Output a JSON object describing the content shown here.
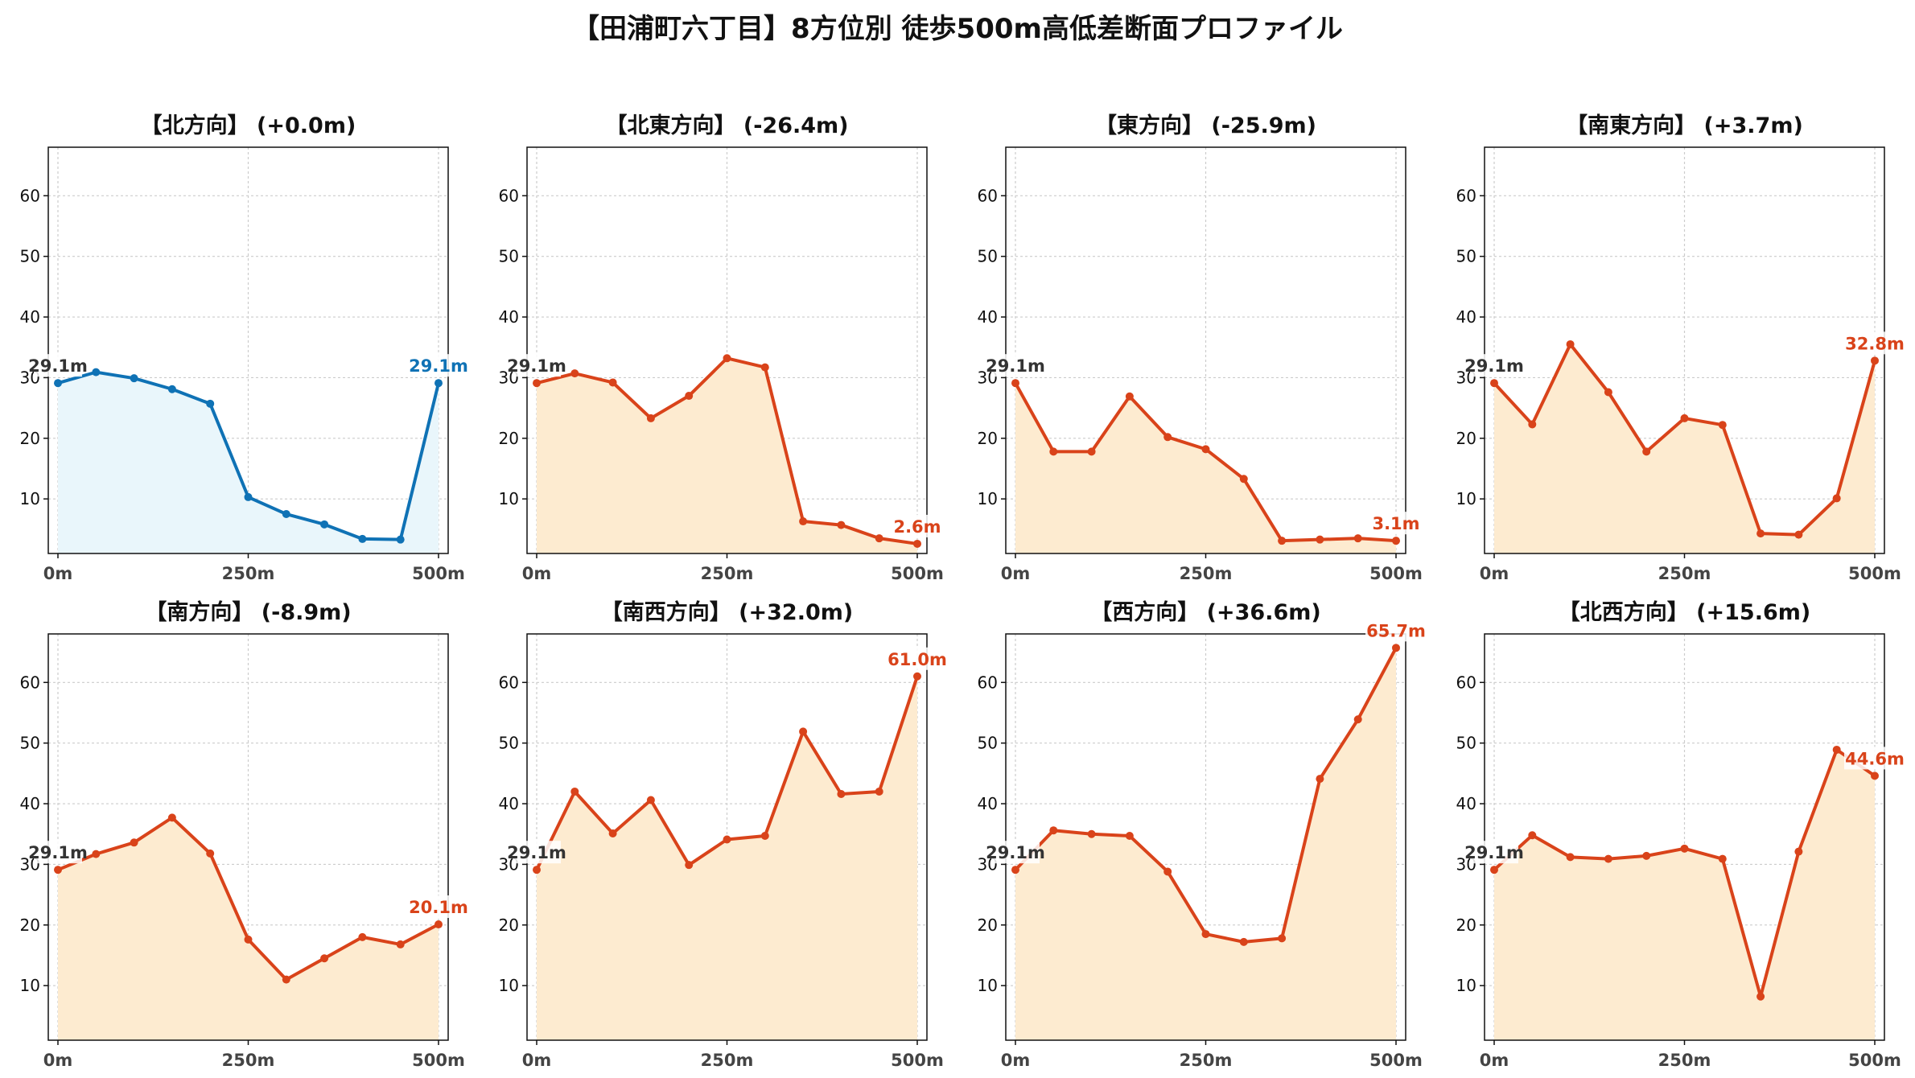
{
  "figure": {
    "title": "【田浦町六丁目】8方位別 徒歩500m高低差断面プロファイル"
  },
  "colors": {
    "north_line": "#0f72b5",
    "north_fill": "#e9f6fb",
    "other_line": "#d9431a",
    "other_fill": "#fdebd0",
    "start_label": "#333333"
  },
  "chart_data": [
    {
      "type": "area",
      "title": "【北方向】 (+0.0m)",
      "x": [
        0,
        50,
        100,
        150,
        200,
        250,
        300,
        350,
        400,
        450,
        500
      ],
      "values": [
        29.1,
        30.9,
        29.9,
        28.1,
        25.7,
        10.3,
        7.5,
        5.8,
        3.4,
        3.3,
        29.1
      ],
      "xticks": [
        "0m",
        "250m",
        "500m"
      ],
      "yticks": [
        10,
        20,
        30,
        40,
        50,
        60
      ],
      "ylim": [
        1,
        68
      ],
      "start_label": "29.1m",
      "end_label": "29.1m",
      "grid": true
    },
    {
      "type": "area",
      "title": "【北東方向】 (-26.4m)",
      "x": [
        0,
        50,
        100,
        150,
        200,
        250,
        300,
        350,
        400,
        450,
        500
      ],
      "values": [
        29.1,
        30.7,
        29.2,
        23.3,
        27.0,
        33.2,
        31.7,
        6.3,
        5.7,
        3.5,
        2.6
      ],
      "xticks": [
        "0m",
        "250m",
        "500m"
      ],
      "yticks": [
        10,
        20,
        30,
        40,
        50,
        60
      ],
      "ylim": [
        1,
        68
      ],
      "start_label": "29.1m",
      "end_label": "2.6m",
      "grid": true
    },
    {
      "type": "area",
      "title": "【東方向】 (-25.9m)",
      "x": [
        0,
        50,
        100,
        150,
        200,
        250,
        300,
        350,
        400,
        450,
        500
      ],
      "values": [
        29.1,
        17.8,
        17.8,
        26.9,
        20.2,
        18.2,
        13.3,
        3.1,
        3.3,
        3.5,
        3.1
      ],
      "xticks": [
        "0m",
        "250m",
        "500m"
      ],
      "yticks": [
        10,
        20,
        30,
        40,
        50,
        60
      ],
      "ylim": [
        1,
        68
      ],
      "start_label": "29.1m",
      "end_label": "3.1m",
      "grid": true
    },
    {
      "type": "area",
      "title": "【南東方向】 (+3.7m)",
      "x": [
        0,
        50,
        100,
        150,
        200,
        250,
        300,
        350,
        400,
        450,
        500
      ],
      "values": [
        29.1,
        22.3,
        35.5,
        27.6,
        17.8,
        23.3,
        22.2,
        4.3,
        4.1,
        10.1,
        32.8
      ],
      "xticks": [
        "0m",
        "250m",
        "500m"
      ],
      "yticks": [
        10,
        20,
        30,
        40,
        50,
        60
      ],
      "ylim": [
        1,
        68
      ],
      "start_label": "29.1m",
      "end_label": "32.8m",
      "grid": true
    },
    {
      "type": "area",
      "title": "【南方向】 (-8.9m)",
      "x": [
        0,
        50,
        100,
        150,
        200,
        250,
        300,
        350,
        400,
        450,
        500
      ],
      "values": [
        29.1,
        31.7,
        33.6,
        37.7,
        31.8,
        17.6,
        11.0,
        14.5,
        18.0,
        16.8,
        20.1
      ],
      "xticks": [
        "0m",
        "250m",
        "500m"
      ],
      "yticks": [
        10,
        20,
        30,
        40,
        50,
        60
      ],
      "ylim": [
        1,
        68
      ],
      "start_label": "29.1m",
      "end_label": "20.1m",
      "grid": true
    },
    {
      "type": "area",
      "title": "【南西方向】 (+32.0m)",
      "x": [
        0,
        50,
        100,
        150,
        200,
        250,
        300,
        350,
        400,
        450,
        500
      ],
      "values": [
        29.1,
        42.0,
        35.1,
        40.6,
        29.9,
        34.1,
        34.7,
        51.9,
        41.6,
        42.0,
        61.0
      ],
      "xticks": [
        "0m",
        "250m",
        "500m"
      ],
      "yticks": [
        10,
        20,
        30,
        40,
        50,
        60
      ],
      "ylim": [
        1,
        68
      ],
      "start_label": "29.1m",
      "end_label": "61.0m",
      "grid": true
    },
    {
      "type": "area",
      "title": "【西方向】 (+36.6m)",
      "x": [
        0,
        50,
        100,
        150,
        200,
        250,
        300,
        350,
        400,
        450,
        500
      ],
      "values": [
        29.1,
        35.6,
        35.0,
        34.7,
        28.8,
        18.5,
        17.2,
        17.8,
        44.1,
        53.9,
        65.7
      ],
      "xticks": [
        "0m",
        "250m",
        "500m"
      ],
      "yticks": [
        10,
        20,
        30,
        40,
        50,
        60
      ],
      "ylim": [
        1,
        68
      ],
      "start_label": "29.1m",
      "end_label": "65.7m",
      "grid": true
    },
    {
      "type": "area",
      "title": "【北西方向】 (+15.6m)",
      "x": [
        0,
        50,
        100,
        150,
        200,
        250,
        300,
        350,
        400,
        450,
        500
      ],
      "values": [
        29.1,
        34.8,
        31.2,
        30.9,
        31.4,
        32.6,
        30.9,
        8.2,
        32.1,
        48.9,
        44.6
      ],
      "xticks": [
        "0m",
        "250m",
        "500m"
      ],
      "yticks": [
        10,
        20,
        30,
        40,
        50,
        60
      ],
      "ylim": [
        1,
        68
      ],
      "start_label": "29.1m",
      "end_label": "44.6m",
      "grid": true
    }
  ]
}
